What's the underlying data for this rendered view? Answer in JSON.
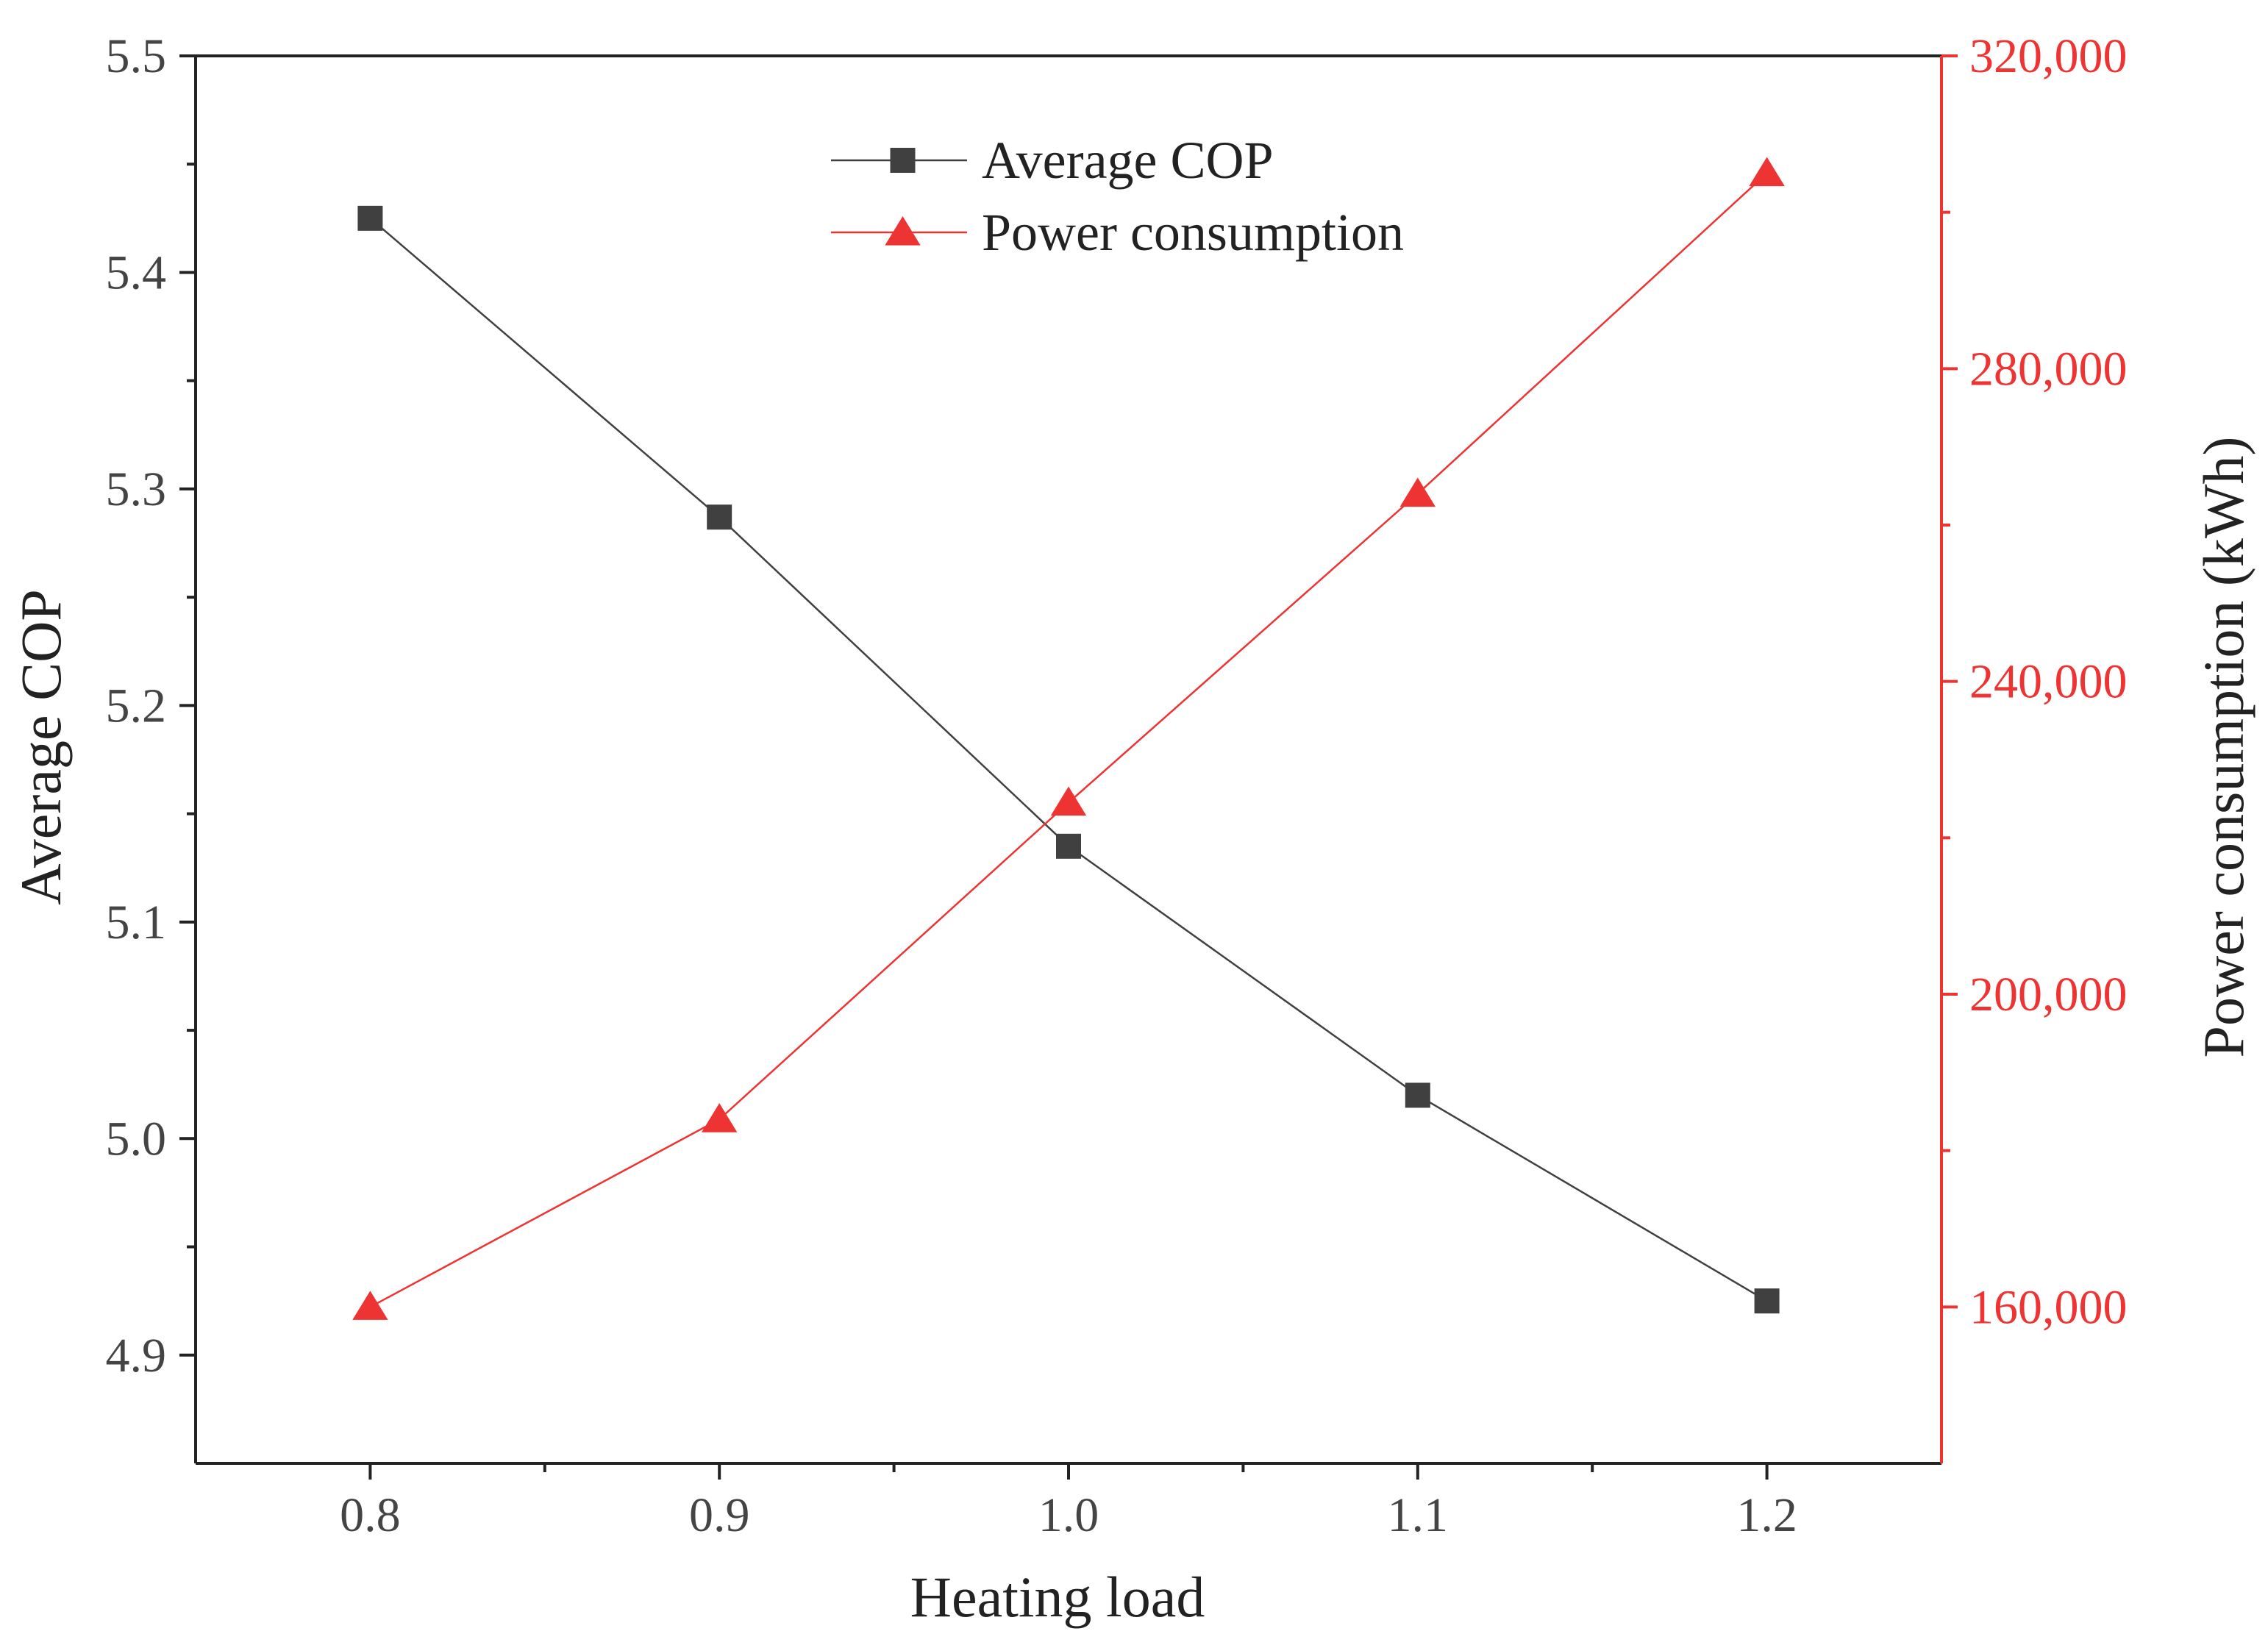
{
  "chart_data": {
    "type": "line",
    "xlabel": "Heating load",
    "ylabel_left": "Average COP",
    "ylabel_right": "Power consumption (kWh)",
    "xlim": [
      0.75,
      1.25
    ],
    "ylim_left": [
      4.85,
      5.5
    ],
    "ylim_right": [
      140000,
      320000
    ],
    "x": [
      0.8,
      0.9,
      1.0,
      1.1,
      1.2
    ],
    "x_tick_labels": [
      "0.8",
      "0.9",
      "1.0",
      "1.1",
      "1.2"
    ],
    "y_left_ticks": [
      4.9,
      5.0,
      5.1,
      5.2,
      5.3,
      5.4,
      5.5
    ],
    "y_left_tick_labels": [
      "4.9",
      "5.0",
      "5.1",
      "5.2",
      "5.3",
      "5.4",
      "5.5"
    ],
    "y_right_ticks": [
      160000,
      200000,
      240000,
      280000,
      320000
    ],
    "y_right_tick_labels": [
      "160,000",
      "200,000",
      "240,000",
      "280,000",
      "320,000"
    ],
    "series": [
      {
        "name": "Average COP",
        "axis": "left",
        "marker": "square",
        "color": "#404040",
        "values": [
          5.425,
          5.287,
          5.135,
          5.02,
          4.925
        ]
      },
      {
        "name": "Power consumption",
        "axis": "right",
        "marker": "triangle",
        "color": "#ee3333",
        "values": [
          160000,
          184000,
          224500,
          264000,
          305000
        ]
      }
    ],
    "legend_position": "top-center",
    "grid": false
  }
}
